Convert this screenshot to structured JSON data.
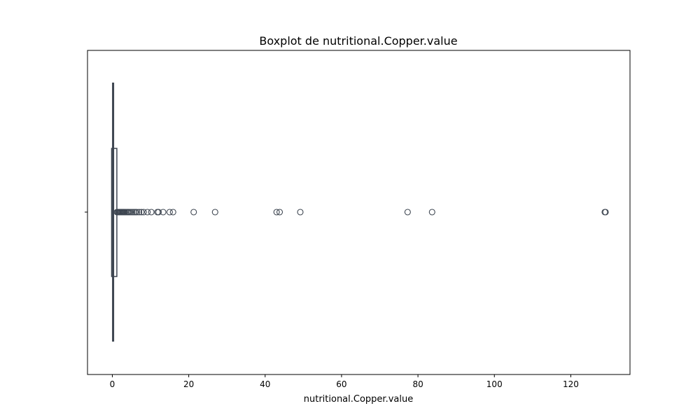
{
  "chart_data": {
    "type": "boxplot",
    "title": "Boxplot de nutritional.Copper.value",
    "xlabel": "nutritional.Copper.value",
    "ylabel": "",
    "xlim": [
      -6.5,
      135.5
    ],
    "x_ticks": [
      0,
      20,
      40,
      60,
      80,
      100,
      120
    ],
    "grid": false,
    "orientation": "horizontal",
    "box": {
      "whisker_low": 0.0,
      "q1": 0.05,
      "median": 0.2,
      "q3": 0.5,
      "whisker_high": 1.0
    },
    "outliers": [
      1.2,
      1.4,
      1.6,
      1.8,
      2.0,
      2.2,
      2.4,
      2.6,
      2.8,
      3.0,
      3.2,
      3.5,
      3.8,
      4.1,
      4.4,
      4.8,
      5.2,
      5.6,
      6.0,
      6.4,
      7.0,
      7.6,
      8.2,
      9.2,
      10.2,
      11.8,
      12.1,
      13.3,
      15.0,
      15.9,
      21.3,
      26.9,
      43.0,
      43.8,
      49.2,
      77.3,
      83.7,
      128.9,
      129.1
    ]
  }
}
